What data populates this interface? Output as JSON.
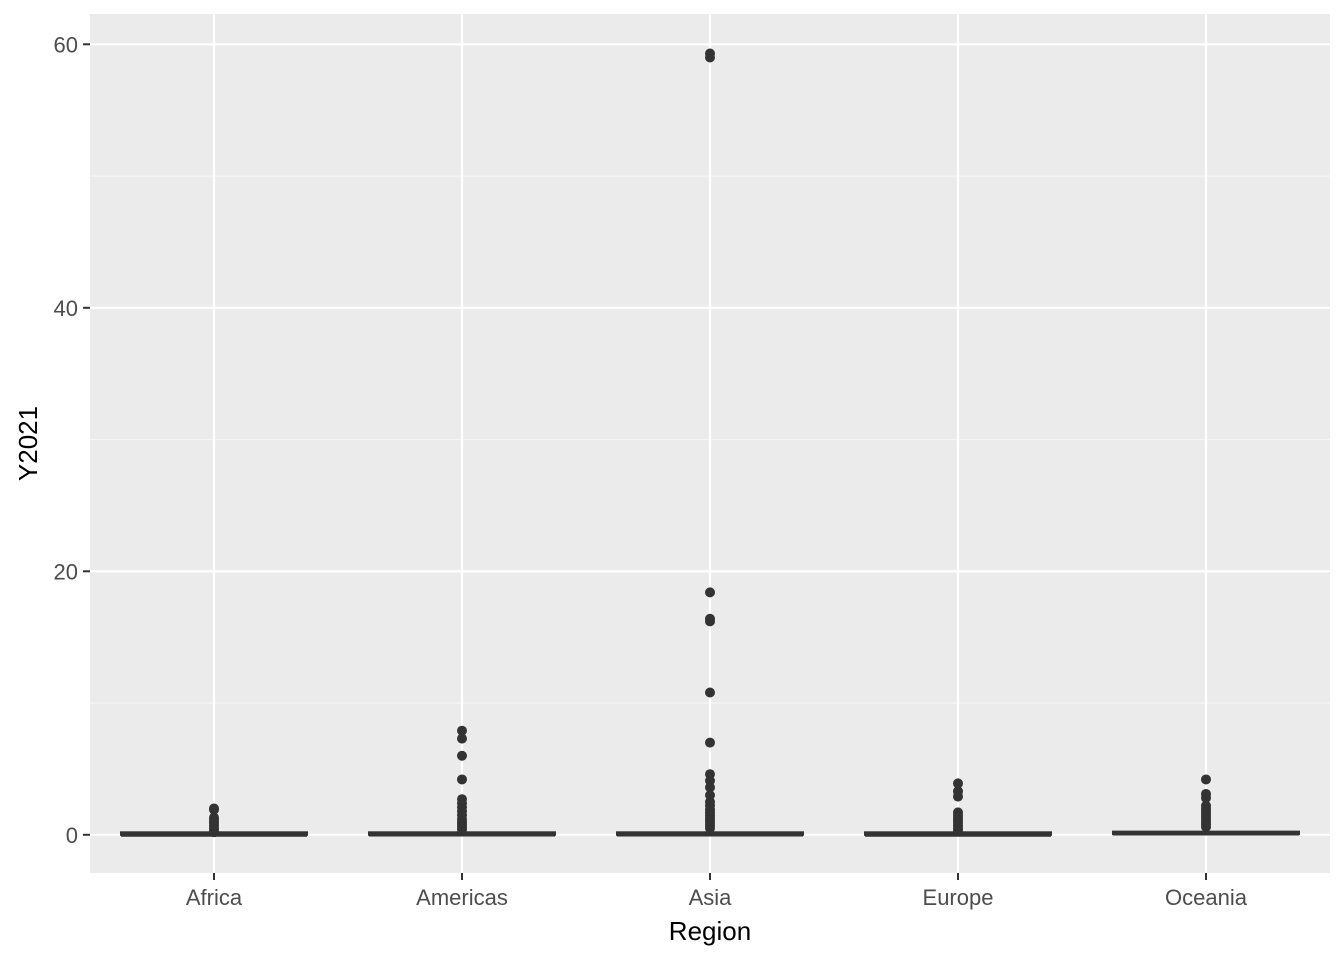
{
  "chart_data": {
    "type": "boxplot",
    "xlabel": "Region",
    "ylabel": "Y2021",
    "categories": [
      "Africa",
      "Americas",
      "Asia",
      "Europe",
      "Oceania"
    ],
    "ylim": [
      -2.9,
      62.3
    ],
    "yticks": [
      0,
      20,
      40,
      60
    ],
    "y_minor_ticks": [
      10,
      30,
      50
    ],
    "grid": true,
    "legend": "none",
    "boxes": [
      {
        "category": "Africa",
        "q1": 0,
        "median": 0,
        "q3": 0.02,
        "whisker_low": 0,
        "whisker_high": 0.05,
        "outliers": [
          0.2,
          0.3,
          0.5,
          0.7,
          0.9,
          1.1,
          1.3,
          1.9,
          2.0
        ]
      },
      {
        "category": "Americas",
        "q1": 0,
        "median": 0.02,
        "q3": 0.1,
        "whisker_low": 0,
        "whisker_high": 0.25,
        "outliers": [
          0.4,
          0.6,
          0.8,
          1.0,
          1.2,
          1.5,
          1.8,
          2.1,
          2.4,
          2.7,
          4.2,
          6.0,
          7.3,
          7.9
        ]
      },
      {
        "category": "Asia",
        "q1": 0,
        "median": 0.02,
        "q3": 0.12,
        "whisker_low": 0,
        "whisker_high": 0.3,
        "outliers": [
          0.5,
          0.7,
          0.9,
          1.1,
          1.3,
          1.5,
          1.7,
          1.9,
          2.2,
          2.5,
          3.0,
          3.6,
          4.1,
          4.6,
          7.0,
          10.8,
          16.2,
          16.4,
          18.4,
          59.0,
          59.3
        ]
      },
      {
        "category": "Europe",
        "q1": 0,
        "median": 0,
        "q3": 0.05,
        "whisker_low": 0,
        "whisker_high": 0.15,
        "outliers": [
          0.3,
          0.5,
          0.7,
          0.9,
          1.1,
          1.3,
          1.5,
          1.7,
          2.9,
          3.3,
          3.9
        ]
      },
      {
        "category": "Oceania",
        "q1": 0.05,
        "median": 0.1,
        "q3": 0.2,
        "whisker_low": 0,
        "whisker_high": 0.4,
        "outliers": [
          0.6,
          0.8,
          1.0,
          1.2,
          1.4,
          1.6,
          1.8,
          2.0,
          2.2,
          2.8,
          3.1,
          4.2
        ]
      }
    ],
    "colors": {
      "panel_bg": "#ebebeb",
      "grid_major": "#ffffff",
      "grid_minor": "#f5f5f5",
      "box_line": "#333333",
      "point": "#333333",
      "tick": "#333333"
    }
  }
}
